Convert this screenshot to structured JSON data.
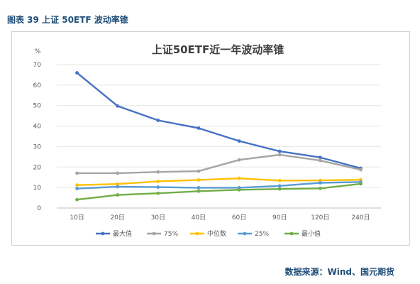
{
  "figure_caption": "图表 39 上证 50ETF 波动率锥",
  "source_note": "数据来源：Wind、国元期货",
  "chart_data": {
    "type": "line",
    "title": "上证50ETF近一年波动率锥",
    "ylabel": "%",
    "xlabel": "",
    "ylim": [
      0,
      70
    ],
    "yticks": [
      0,
      10,
      20,
      30,
      40,
      50,
      60,
      70
    ],
    "grid": true,
    "legend_position": "bottom",
    "categories": [
      "10日",
      "20日",
      "30日",
      "40日",
      "60日",
      "90日",
      "120日",
      "240日"
    ],
    "series": [
      {
        "name": "最大值",
        "color": "#4472c4",
        "values": [
          66,
          49.8,
          42.8,
          39,
          32.7,
          27.7,
          24.7,
          19.4
        ]
      },
      {
        "name": "75%",
        "color": "#a5a5a5",
        "values": [
          17,
          17,
          17.6,
          18,
          23.5,
          26,
          23.2,
          18.7
        ]
      },
      {
        "name": "中位数",
        "color": "#ffc000",
        "values": [
          11.2,
          11.7,
          13,
          13.7,
          14.5,
          13.4,
          13.5,
          13.8
        ]
      },
      {
        "name": "25%",
        "color": "#5b9bd5",
        "values": [
          9.5,
          10.4,
          10.2,
          9.9,
          9.9,
          10.8,
          12.3,
          12.7
        ]
      },
      {
        "name": "最小值",
        "color": "#70ad47",
        "values": [
          4.1,
          6.4,
          7.2,
          8.2,
          8.9,
          9.3,
          9.6,
          11.8
        ]
      }
    ]
  }
}
